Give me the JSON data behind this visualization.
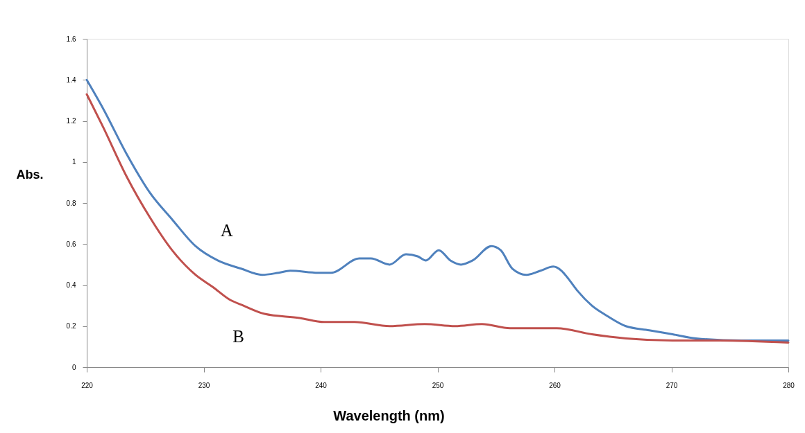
{
  "chart_data": {
    "type": "line",
    "xlabel": "Wavelength (nm)",
    "ylabel": "Abs.",
    "xlim": [
      220,
      280
    ],
    "xticks": [
      220,
      230,
      240,
      250,
      260,
      270,
      280
    ],
    "ylim": [
      0,
      1.6
    ],
    "yticks": [
      0,
      0.2,
      0.4,
      0.6,
      0.8,
      1,
      1.2,
      1.4,
      1.6
    ],
    "grid": false,
    "legend": false,
    "marker": "none",
    "line_style": "solid",
    "series": [
      {
        "name": "A",
        "color": "#4f81bd",
        "x": [
          220,
          221.4,
          223.4,
          225.4,
          227.3,
          229.3,
          231.2,
          233.2,
          235,
          236.4,
          237.4,
          239.8,
          240.9,
          243.3,
          244.3,
          245.9,
          247.3,
          248.3,
          249,
          250.1,
          251.1,
          252,
          253,
          254.6,
          255.4,
          256.4,
          257.6,
          258.8,
          259.9,
          260.6,
          261.2,
          262,
          263.2,
          264.5,
          266.1,
          268.1,
          270.1,
          272.1,
          276,
          280
        ],
        "values": [
          1.4,
          1.26,
          1.04,
          0.85,
          0.72,
          0.59,
          0.52,
          0.48,
          0.45,
          0.46,
          0.47,
          0.46,
          0.46,
          0.53,
          0.53,
          0.5,
          0.55,
          0.54,
          0.52,
          0.57,
          0.52,
          0.5,
          0.52,
          0.59,
          0.57,
          0.48,
          0.45,
          0.47,
          0.49,
          0.47,
          0.43,
          0.37,
          0.3,
          0.25,
          0.2,
          0.18,
          0.16,
          0.14,
          0.13,
          0.13
        ]
      },
      {
        "name": "B",
        "color": "#c0504d",
        "x": [
          220,
          221.4,
          223.4,
          225.4,
          227.3,
          229.3,
          230.8,
          232.2,
          233.4,
          235.2,
          238.2,
          240.3,
          242.9,
          245.9,
          248.9,
          251.5,
          253.8,
          256.2,
          258,
          260.2,
          263.2,
          266.1,
          270.1,
          274.1,
          280
        ],
        "values": [
          1.33,
          1.17,
          0.93,
          0.73,
          0.57,
          0.45,
          0.39,
          0.33,
          0.3,
          0.26,
          0.24,
          0.22,
          0.22,
          0.2,
          0.21,
          0.2,
          0.21,
          0.19,
          0.19,
          0.19,
          0.16,
          0.14,
          0.13,
          0.13,
          0.12
        ]
      }
    ]
  }
}
